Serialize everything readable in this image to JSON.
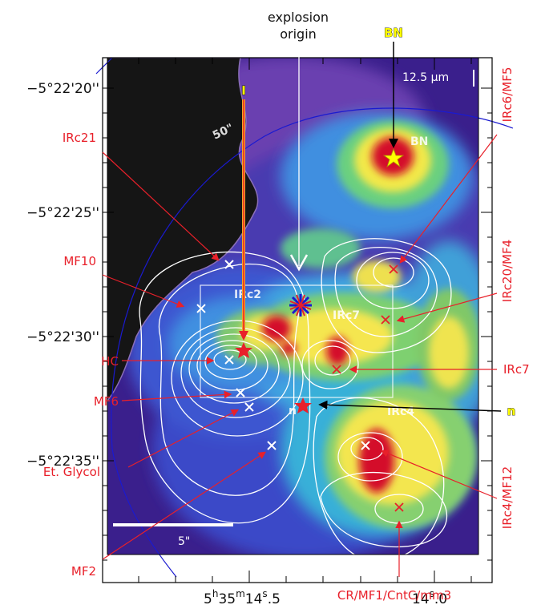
{
  "figure": {
    "wavelength_label": "12.5 μm",
    "explosion_label_line1": "explosion",
    "explosion_label_line2": "origin",
    "scale_bar_label": "5\"",
    "tag_BN": "BN",
    "tag_I": "I",
    "tag_n": "n",
    "image_labels": {
      "bn": "BN",
      "irc2": "IRc2",
      "irc7": "IRc7",
      "irc4": "IRc4",
      "n": "n",
      "circle": "50\""
    }
  },
  "axes": {
    "dec_ticks": [
      "−5°22'20''",
      "−5°22'25''",
      "−5°22'30''",
      "−5°22'35''"
    ],
    "ra_tick_main": "5",
    "ra_tick_h": "h",
    "ra_tick_mid": "35",
    "ra_tick_m": "m",
    "ra_tick_sec": "14",
    "ra_tick_s": "s",
    "ra_tick_frac": ".5",
    "ra_tick2_sec": "14",
    "ra_tick2_s": "s",
    "ra_tick2_frac": ".0"
  },
  "labels": {
    "irc21": "IRc21",
    "mf10": "MF10",
    "hc": "HC",
    "mf6": "MF6",
    "etglycol": "Et. Glycol",
    "mf2": "MF2",
    "irc6mf5": "IRc6/MF5",
    "irc20mf4": "IRc20/MF4",
    "irc7": "IRc7",
    "irc4mf12": "IRc4/MF12",
    "cr": "CR/MF1/CntC/mm3"
  },
  "colors": {
    "background": "#3a1f8c",
    "dark_region": "#151515",
    "label_red": "#e8202a",
    "contour_white": "#ffffff",
    "hot_red": "#d4102a",
    "tag_yellow": "#ffff00",
    "orange_arrow": "#f5a623"
  }
}
